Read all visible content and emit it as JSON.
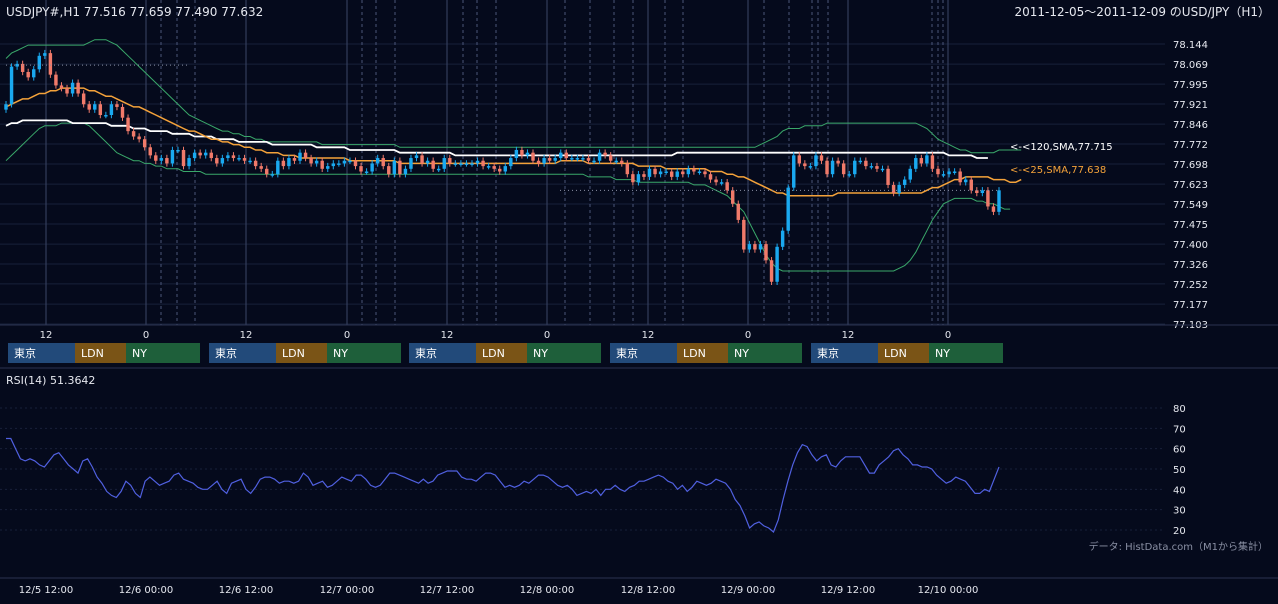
{
  "header": {
    "symbol_info": "USDJPY#,H1 77.516 77.659 77.490 77.632",
    "title": "2011-12-05～2011-12-09 のUSD/JPY（H1）"
  },
  "colors": {
    "background": "#050a1c",
    "grid": "#18203a",
    "candle_up": "#1aa9f0",
    "candle_down": "#f07a6a",
    "sma120": "#ffffff",
    "sma25": "#f4a23a",
    "bollinger": "#3aa86a",
    "rsi": "#5060e0",
    "session_tokyo": "#224a7a",
    "session_london": "#7a5416",
    "session_ny": "#1e5f3a"
  },
  "price_axis": {
    "ticks": [
      "78.144",
      "78.069",
      "77.995",
      "77.921",
      "77.846",
      "77.772",
      "77.698",
      "77.623",
      "77.549",
      "77.475",
      "77.400",
      "77.326",
      "77.252",
      "77.177",
      "77.103"
    ]
  },
  "time_axis": {
    "hour_labels": [
      "12",
      "0",
      "12",
      "0",
      "12",
      "0",
      "12",
      "0",
      "12",
      "0"
    ],
    "date_labels": [
      "12/5 12:00",
      "12/6 00:00",
      "12/6 12:00",
      "12/7 00:00",
      "12/7 12:00",
      "12/8 00:00",
      "12/8 12:00",
      "12/9 00:00",
      "12/9 12:00",
      "12/10 00:00"
    ]
  },
  "sessions": {
    "labels": [
      "東京",
      "LDN",
      "NY"
    ]
  },
  "annotations": {
    "sma120_label": "<-<120,SMA,77.715",
    "sma25_label": "<-<25,SMA,77.638"
  },
  "rsi_panel": {
    "title": "RSI(14) 51.3642",
    "ticks": [
      "80",
      "70",
      "60",
      "50",
      "40",
      "30",
      "20"
    ]
  },
  "footer": {
    "credit": "データ: HistData.com（M1から集計）"
  },
  "chart_data": [
    {
      "type": "candlestick",
      "title": "2011-12-05～2011-12-09 のUSD/JPY（H1）",
      "ylim": [
        77.103,
        78.144
      ],
      "closes": [
        77.92,
        78.06,
        78.07,
        78.04,
        78.02,
        78.05,
        78.1,
        78.11,
        78.03,
        77.99,
        77.98,
        77.96,
        78.0,
        77.96,
        77.92,
        77.9,
        77.92,
        77.88,
        77.88,
        77.92,
        77.91,
        77.87,
        77.82,
        77.8,
        77.79,
        77.76,
        77.73,
        77.71,
        77.72,
        77.7,
        77.75,
        77.75,
        77.69,
        77.72,
        77.74,
        77.73,
        77.74,
        77.72,
        77.7,
        77.72,
        77.73,
        77.72,
        77.72,
        77.71,
        77.71,
        77.69,
        77.68,
        77.66,
        77.66,
        77.71,
        77.69,
        77.72,
        77.71,
        77.74,
        77.72,
        77.7,
        77.71,
        77.68,
        77.69,
        77.7,
        77.7,
        77.71,
        77.71,
        77.69,
        77.67,
        77.67,
        77.7,
        77.72,
        77.69,
        77.66,
        77.71,
        77.66,
        77.68,
        77.72,
        77.73,
        77.7,
        77.71,
        77.68,
        77.68,
        77.72,
        77.7,
        77.7,
        77.7,
        77.7,
        77.7,
        77.71,
        77.69,
        77.69,
        77.68,
        77.67,
        77.69,
        77.72,
        77.75,
        77.73,
        77.74,
        77.71,
        77.7,
        77.72,
        77.71,
        77.72,
        77.74,
        77.72,
        77.72,
        77.72,
        77.72,
        77.71,
        77.71,
        77.74,
        77.73,
        77.71,
        77.71,
        77.7,
        77.66,
        77.63,
        77.66,
        77.65,
        77.68,
        77.66,
        77.67,
        77.67,
        77.65,
        77.67,
        77.66,
        77.68,
        77.67,
        77.67,
        77.66,
        77.64,
        77.63,
        77.63,
        77.6,
        77.55,
        77.49,
        77.38,
        77.4,
        77.38,
        77.4,
        77.34,
        77.26,
        77.39,
        77.45,
        77.61,
        77.73,
        77.7,
        77.69,
        77.69,
        77.73,
        77.71,
        77.66,
        77.71,
        77.7,
        77.66,
        77.66,
        77.71,
        77.71,
        77.69,
        77.69,
        77.68,
        77.68,
        77.62,
        77.59,
        77.62,
        77.64,
        77.68,
        77.72,
        77.7,
        77.73,
        77.68,
        77.66,
        77.66,
        77.67,
        77.67,
        77.63,
        77.64,
        77.6,
        77.59,
        77.6,
        77.54,
        77.52,
        77.6
      ],
      "sma120": [
        77.84,
        77.85,
        77.85,
        77.86,
        77.86,
        77.86,
        77.86,
        77.86,
        77.86,
        77.86,
        77.86,
        77.86,
        77.85,
        77.85,
        77.85,
        77.85,
        77.85,
        77.85,
        77.85,
        77.84,
        77.84,
        77.84,
        77.84,
        77.83,
        77.83,
        77.83,
        77.82,
        77.82,
        77.82,
        77.82,
        77.81,
        77.81,
        77.81,
        77.81,
        77.8,
        77.8,
        77.8,
        77.8,
        77.79,
        77.79,
        77.79,
        77.79,
        77.78,
        77.78,
        77.78,
        77.78,
        77.78,
        77.78,
        77.77,
        77.77,
        77.77,
        77.77,
        77.77,
        77.77,
        77.77,
        77.77,
        77.76,
        77.76,
        77.76,
        77.76,
        77.76,
        77.76,
        77.75,
        77.75,
        77.75,
        77.75,
        77.75,
        77.75,
        77.75,
        77.75,
        77.75,
        77.74,
        77.74,
        77.74,
        77.74,
        77.74,
        77.74,
        77.74,
        77.74,
        77.74,
        77.74,
        77.73,
        77.73,
        77.73,
        77.73,
        77.73,
        77.73,
        77.73,
        77.73,
        77.73,
        77.73,
        77.73,
        77.73,
        77.73,
        77.73,
        77.73,
        77.73,
        77.73,
        77.73,
        77.73,
        77.73,
        77.73,
        77.73,
        77.73,
        77.73,
        77.73,
        77.73,
        77.73,
        77.73,
        77.73,
        77.73,
        77.73,
        77.73,
        77.73,
        77.73,
        77.73,
        77.73,
        77.73,
        77.73,
        77.73,
        77.73,
        77.74,
        77.74,
        77.74,
        77.74,
        77.74,
        77.74,
        77.74,
        77.74,
        77.74,
        77.74,
        77.74,
        77.74,
        77.74,
        77.74,
        77.74,
        77.74,
        77.74,
        77.74,
        77.74,
        77.74,
        77.74,
        77.74,
        77.74,
        77.74,
        77.74,
        77.74,
        77.74,
        77.74,
        77.74,
        77.74,
        77.74,
        77.74,
        77.74,
        77.74,
        77.74,
        77.74,
        77.74,
        77.74,
        77.74,
        77.74,
        77.74,
        77.74,
        77.74,
        77.74,
        77.74,
        77.74,
        77.74,
        77.74,
        77.74,
        77.73,
        77.73,
        77.73,
        77.73,
        77.73,
        77.72,
        77.72,
        77.72
      ],
      "sma25": [
        77.91,
        77.92,
        77.93,
        77.94,
        77.94,
        77.95,
        77.96,
        77.96,
        77.97,
        77.97,
        77.98,
        77.98,
        77.98,
        77.98,
        77.98,
        77.97,
        77.97,
        77.96,
        77.95,
        77.95,
        77.94,
        77.93,
        77.92,
        77.91,
        77.91,
        77.9,
        77.89,
        77.88,
        77.87,
        77.86,
        77.85,
        77.84,
        77.83,
        77.82,
        77.82,
        77.81,
        77.8,
        77.79,
        77.79,
        77.78,
        77.78,
        77.77,
        77.77,
        77.76,
        77.76,
        77.75,
        77.75,
        77.74,
        77.74,
        77.74,
        77.73,
        77.73,
        77.73,
        77.72,
        77.72,
        77.72,
        77.72,
        77.72,
        77.72,
        77.72,
        77.72,
        77.72,
        77.71,
        77.71,
        77.71,
        77.71,
        77.71,
        77.71,
        77.71,
        77.71,
        77.71,
        77.7,
        77.7,
        77.7,
        77.7,
        77.7,
        77.7,
        77.7,
        77.7,
        77.7,
        77.7,
        77.7,
        77.7,
        77.7,
        77.7,
        77.7,
        77.7,
        77.7,
        77.7,
        77.7,
        77.7,
        77.7,
        77.7,
        77.7,
        77.7,
        77.7,
        77.7,
        77.7,
        77.7,
        77.7,
        77.71,
        77.71,
        77.71,
        77.71,
        77.71,
        77.7,
        77.7,
        77.7,
        77.7,
        77.7,
        77.7,
        77.7,
        77.7,
        77.7,
        77.69,
        77.69,
        77.69,
        77.69,
        77.69,
        77.68,
        77.68,
        77.68,
        77.68,
        77.68,
        77.68,
        77.68,
        77.68,
        77.67,
        77.67,
        77.67,
        77.66,
        77.66,
        77.65,
        77.65,
        77.64,
        77.63,
        77.62,
        77.61,
        77.6,
        77.59,
        77.59,
        77.58,
        77.58,
        77.58,
        77.58,
        77.58,
        77.58,
        77.58,
        77.58,
        77.58,
        77.59,
        77.59,
        77.59,
        77.59,
        77.59,
        77.59,
        77.59,
        77.59,
        77.59,
        77.59,
        77.59,
        77.59,
        77.59,
        77.59,
        77.59,
        77.59,
        77.6,
        77.61,
        77.61,
        77.62,
        77.63,
        77.64,
        77.64,
        77.65,
        77.65,
        77.65,
        77.65,
        77.65,
        77.64,
        77.64,
        77.64,
        77.63,
        77.63,
        77.64
      ],
      "bb_upper": [
        78.09,
        78.11,
        78.12,
        78.13,
        78.14,
        78.14,
        78.14,
        78.14,
        78.14,
        78.14,
        78.14,
        78.14,
        78.14,
        78.14,
        78.14,
        78.15,
        78.16,
        78.16,
        78.16,
        78.15,
        78.14,
        78.12,
        78.1,
        78.08,
        78.06,
        78.04,
        78.02,
        78.0,
        77.98,
        77.96,
        77.94,
        77.92,
        77.9,
        77.88,
        77.87,
        77.86,
        77.85,
        77.84,
        77.83,
        77.82,
        77.82,
        77.81,
        77.81,
        77.8,
        77.8,
        77.79,
        77.79,
        77.78,
        77.78,
        77.78,
        77.78,
        77.78,
        77.78,
        77.78,
        77.78,
        77.78,
        77.78,
        77.77,
        77.77,
        77.77,
        77.77,
        77.77,
        77.77,
        77.77,
        77.77,
        77.77,
        77.77,
        77.77,
        77.77,
        77.77,
        77.77,
        77.76,
        77.76,
        77.76,
        77.76,
        77.76,
        77.76,
        77.76,
        77.76,
        77.76,
        77.76,
        77.76,
        77.76,
        77.76,
        77.76,
        77.76,
        77.76,
        77.76,
        77.76,
        77.76,
        77.76,
        77.76,
        77.76,
        77.76,
        77.76,
        77.76,
        77.76,
        77.76,
        77.76,
        77.76,
        77.76,
        77.76,
        77.76,
        77.76,
        77.76,
        77.76,
        77.76,
        77.76,
        77.76,
        77.76,
        77.76,
        77.76,
        77.76,
        77.76,
        77.76,
        77.76,
        77.76,
        77.76,
        77.76,
        77.76,
        77.76,
        77.76,
        77.76,
        77.76,
        77.76,
        77.76,
        77.76,
        77.76,
        77.76,
        77.76,
        77.76,
        77.76,
        77.76,
        77.76,
        77.76,
        77.76,
        77.77,
        77.78,
        77.79,
        77.8,
        77.82,
        77.83,
        77.83,
        77.83,
        77.84,
        77.84,
        77.84,
        77.84,
        77.85,
        77.85,
        77.85,
        77.85,
        77.85,
        77.85,
        77.85,
        77.85,
        77.85,
        77.85,
        77.85,
        77.85,
        77.85,
        77.85,
        77.85,
        77.85,
        77.85,
        77.84,
        77.83,
        77.81,
        77.79,
        77.78,
        77.77,
        77.76,
        77.75,
        77.75,
        77.74,
        77.74,
        77.74,
        77.74,
        77.74,
        77.75,
        77.75,
        77.75,
        77.75,
        77.75
      ],
      "bb_lower": [
        77.71,
        77.73,
        77.75,
        77.77,
        77.79,
        77.81,
        77.83,
        77.84,
        77.84,
        77.84,
        77.85,
        77.85,
        77.85,
        77.85,
        77.85,
        77.84,
        77.82,
        77.8,
        77.78,
        77.76,
        77.74,
        77.73,
        77.72,
        77.71,
        77.71,
        77.7,
        77.7,
        77.69,
        77.69,
        77.68,
        77.68,
        77.68,
        77.67,
        77.67,
        77.67,
        77.67,
        77.66,
        77.66,
        77.66,
        77.66,
        77.66,
        77.66,
        77.66,
        77.66,
        77.66,
        77.66,
        77.66,
        77.66,
        77.66,
        77.66,
        77.66,
        77.66,
        77.66,
        77.66,
        77.66,
        77.66,
        77.66,
        77.66,
        77.66,
        77.66,
        77.66,
        77.66,
        77.66,
        77.66,
        77.66,
        77.66,
        77.66,
        77.66,
        77.66,
        77.66,
        77.66,
        77.66,
        77.66,
        77.66,
        77.66,
        77.66,
        77.66,
        77.66,
        77.66,
        77.66,
        77.66,
        77.66,
        77.66,
        77.66,
        77.66,
        77.66,
        77.66,
        77.66,
        77.66,
        77.66,
        77.66,
        77.66,
        77.66,
        77.66,
        77.66,
        77.66,
        77.66,
        77.66,
        77.66,
        77.66,
        77.66,
        77.66,
        77.66,
        77.66,
        77.66,
        77.65,
        77.65,
        77.65,
        77.65,
        77.65,
        77.64,
        77.64,
        77.64,
        77.64,
        77.63,
        77.63,
        77.63,
        77.63,
        77.63,
        77.63,
        77.63,
        77.63,
        77.63,
        77.63,
        77.62,
        77.62,
        77.62,
        77.61,
        77.6,
        77.59,
        77.58,
        77.56,
        77.54,
        77.52,
        77.48,
        77.44,
        77.4,
        77.36,
        77.33,
        77.31,
        77.3,
        77.3,
        77.3,
        77.3,
        77.3,
        77.3,
        77.3,
        77.3,
        77.3,
        77.3,
        77.3,
        77.3,
        77.3,
        77.3,
        77.3,
        77.3,
        77.3,
        77.3,
        77.3,
        77.3,
        77.3,
        77.31,
        77.32,
        77.34,
        77.37,
        77.41,
        77.45,
        77.49,
        77.52,
        77.55,
        77.56,
        77.57,
        77.57,
        77.57,
        77.57,
        77.56,
        77.56,
        77.55,
        77.55,
        77.54,
        77.53,
        77.53
      ]
    },
    {
      "type": "line",
      "title": "RSI(14) 51.3642",
      "ylim": [
        15,
        85
      ],
      "series": [
        {
          "values": [
            65,
            65,
            60,
            55,
            54,
            55,
            54,
            52,
            51,
            54,
            57,
            58,
            55,
            52,
            50,
            48,
            54,
            55,
            51,
            46,
            43,
            39,
            37,
            36,
            39,
            44,
            42,
            38,
            36,
            44,
            46,
            44,
            42,
            43,
            44,
            47,
            48,
            45,
            44,
            43,
            41,
            40,
            40,
            42,
            44,
            40,
            38,
            43,
            44,
            45,
            40,
            38,
            41,
            45,
            46,
            46,
            45,
            43,
            44,
            44,
            43,
            44,
            48,
            46,
            42,
            43,
            44,
            41,
            42,
            44,
            46,
            45,
            44,
            47,
            47,
            45,
            42,
            41,
            42,
            45,
            48,
            48,
            47,
            46,
            45,
            44,
            43,
            45,
            43,
            44,
            47,
            48,
            49,
            49,
            49,
            46,
            45,
            45,
            44,
            46,
            48,
            48,
            47,
            44,
            41,
            42,
            41,
            42,
            44,
            43,
            45,
            47,
            47,
            46,
            44,
            42,
            41,
            42,
            40,
            37,
            38,
            39,
            38,
            40,
            37,
            40,
            40,
            42,
            40,
            39,
            41,
            42,
            44,
            44,
            45,
            46,
            47,
            46,
            44,
            43,
            40,
            42,
            39,
            41,
            44,
            43,
            42,
            43,
            45,
            44,
            43,
            40,
            35,
            32,
            27,
            21,
            23,
            24,
            22,
            21,
            19,
            25,
            35,
            44,
            52,
            58,
            62,
            61,
            57,
            54,
            56,
            57,
            52,
            51,
            54,
            56,
            56,
            56,
            56,
            52,
            48,
            48,
            52,
            54,
            56,
            59,
            60,
            57,
            55,
            52,
            52,
            51,
            51,
            50,
            47,
            45,
            43,
            44,
            46,
            45,
            44,
            41,
            38,
            38,
            40,
            39,
            45,
            51
          ]
        }
      ]
    }
  ]
}
